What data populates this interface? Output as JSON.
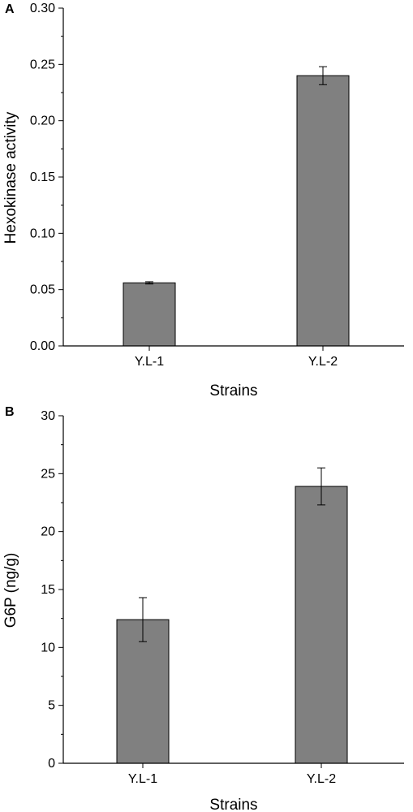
{
  "chart_data": [
    {
      "panel": "A",
      "type": "bar",
      "categories": [
        "Y.L-1",
        "Y.L-2"
      ],
      "values": [
        0.056,
        0.24
      ],
      "errors": [
        0.001,
        0.008
      ],
      "xlabel": "Strains",
      "ylabel": "Hexokinase activity",
      "ylim": [
        0,
        0.3
      ],
      "yticks": [
        "0.00",
        "0.05",
        "0.10",
        "0.15",
        "0.20",
        "0.25",
        "0.30"
      ],
      "bar_color": "#808080",
      "grid": false
    },
    {
      "panel": "B",
      "type": "bar",
      "categories": [
        "Y.L-1",
        "Y.L-2"
      ],
      "values": [
        12.4,
        23.9
      ],
      "errors": [
        1.9,
        1.6
      ],
      "xlabel": "Strains",
      "ylabel": "G6P (ng/g)",
      "ylim": [
        0,
        30
      ],
      "yticks": [
        "0",
        "5",
        "10",
        "15",
        "20",
        "25",
        "30"
      ],
      "bar_color": "#808080",
      "grid": false
    }
  ]
}
